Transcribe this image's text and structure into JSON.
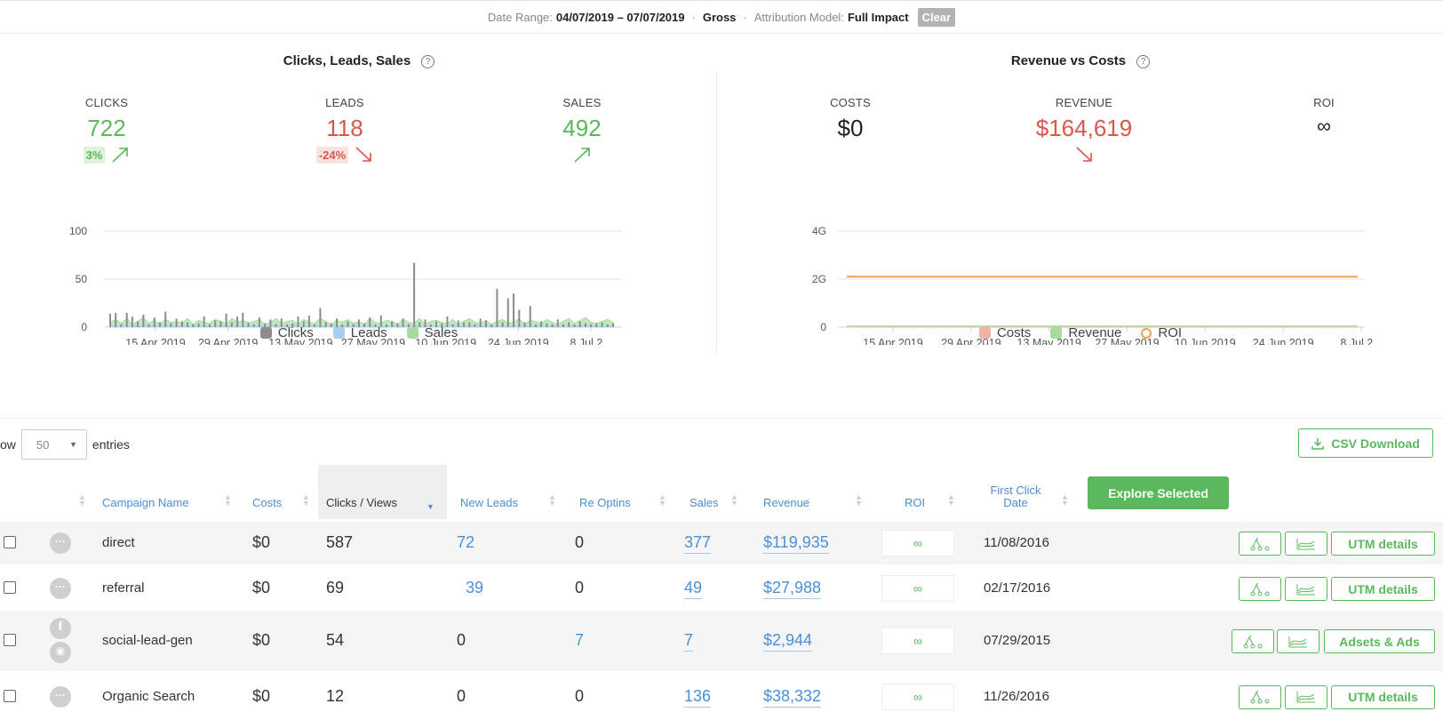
{
  "filter_bar": {
    "date_range_label": "Date Range:",
    "date_range_value": "04/07/2019 – 07/07/2019",
    "gross_label": "Gross",
    "attribution_label": "Attribution Model:",
    "attribution_value": "Full Impact",
    "clear_label": "Clear",
    "separator": "·"
  },
  "left_panel": {
    "title": "Clicks, Leads, Sales",
    "help_icon": "?",
    "kpis": [
      {
        "label": "CLICKS",
        "value": "722",
        "change": "3%",
        "trend": "up"
      },
      {
        "label": "LEADS",
        "value": "118",
        "change": "-24%",
        "trend": "down"
      },
      {
        "label": "SALES",
        "value": "492",
        "change": "",
        "trend": "up"
      }
    ]
  },
  "right_panel": {
    "title": "Revenue vs Costs",
    "help_icon": "?",
    "kpis": [
      {
        "label": "COSTS",
        "value": "$0"
      },
      {
        "label": "REVENUE",
        "value": "$164,619",
        "trend": "down"
      },
      {
        "label": "ROI",
        "value": "∞"
      }
    ]
  },
  "chart_data": [
    {
      "type": "bar",
      "title": "Clicks, Leads, Sales",
      "xlabel": "",
      "ylabel": "",
      "ylim": [
        0,
        100
      ],
      "yticks": [
        "100",
        "50",
        "0"
      ],
      "xticks": [
        "15 Apr 2019",
        "29 Apr 2019",
        "13 May 2019",
        "27 May 2019",
        "10 Jun 2019",
        "24 Jun 2019",
        "8 Jul 2..."
      ],
      "x_start": "2019-04-07",
      "x_end": "2019-07-07",
      "grid": true,
      "legend_position": "bottom",
      "series": [
        {
          "name": "Clicks",
          "color": "#8c8c8c",
          "values": [
            14,
            15,
            3,
            15,
            11,
            6,
            13,
            3,
            10,
            5,
            16,
            4,
            9,
            6,
            5,
            3,
            4,
            11,
            3,
            7,
            6,
            14,
            5,
            11,
            15,
            5,
            3,
            10,
            4,
            8,
            3,
            9,
            3,
            4,
            11,
            6,
            12,
            3,
            20,
            5,
            4,
            9,
            3,
            6,
            3,
            8,
            4,
            10,
            3,
            12,
            3,
            6,
            4,
            9,
            3,
            67,
            5,
            8,
            3,
            6,
            4,
            11,
            3,
            7,
            5,
            5,
            3,
            9,
            7,
            3,
            40,
            5,
            30,
            35,
            18,
            5,
            22,
            3,
            6,
            4,
            3,
            8,
            3,
            5,
            3,
            6,
            4,
            3,
            4,
            5,
            3,
            4
          ]
        },
        {
          "name": "Leads",
          "color": "#a8cdf2",
          "values": [
            2,
            1,
            3,
            1,
            2,
            1,
            1,
            2,
            1,
            1,
            2,
            1,
            1,
            2,
            1,
            1,
            2,
            1,
            1,
            1,
            2,
            1,
            1,
            2,
            1,
            1,
            2,
            1,
            1,
            1,
            2,
            1,
            1,
            1,
            2,
            1,
            1,
            2,
            1,
            1,
            2,
            1,
            1,
            1,
            2,
            1,
            1,
            2,
            1,
            1,
            1,
            2,
            1,
            1,
            2,
            1,
            1,
            1,
            2,
            1,
            1,
            1,
            2,
            1,
            1,
            1,
            2,
            1,
            1,
            1,
            2,
            1,
            1,
            1,
            2,
            1,
            1,
            1,
            2,
            1,
            1,
            1,
            2,
            1,
            1,
            1,
            2,
            1,
            1,
            1,
            1,
            1
          ]
        },
        {
          "name": "Sales",
          "color": "#a8dba0",
          "values": [
            5,
            8,
            4,
            9,
            3,
            6,
            10,
            4,
            7,
            3,
            8,
            5,
            6,
            4,
            9,
            3,
            7,
            5,
            4,
            8,
            6,
            3,
            9,
            5,
            7,
            4,
            6,
            8,
            3,
            5,
            9,
            4,
            6,
            7,
            3,
            8,
            5,
            4,
            9,
            6,
            3,
            7,
            5,
            8,
            4,
            6,
            3,
            9,
            5,
            4,
            7,
            6,
            3,
            8,
            5,
            4,
            9,
            3,
            6,
            7,
            5,
            4,
            8,
            3,
            6,
            9,
            5,
            4,
            7,
            3,
            6,
            8,
            4,
            5,
            9,
            3,
            7,
            6,
            4,
            8,
            5,
            3,
            6,
            9,
            4,
            7,
            10,
            5,
            4,
            6,
            8,
            5
          ]
        }
      ]
    },
    {
      "type": "line",
      "title": "Revenue vs Costs",
      "xlabel": "",
      "ylabel": "",
      "ylim": [
        0,
        4000000000
      ],
      "yticks": [
        "4G",
        "2G",
        "0"
      ],
      "xticks": [
        "15 Apr 2019",
        "29 Apr 2019",
        "13 May 2019",
        "27 May 2019",
        "10 Jun 2019",
        "24 Jun 2019",
        "8 Jul 2..."
      ],
      "x_start": "2019-04-07",
      "x_end": "2019-07-07",
      "grid": true,
      "legend_position": "bottom",
      "series": [
        {
          "name": "Costs",
          "color": "#f0b3a8",
          "values": [
            0,
            0
          ]
        },
        {
          "name": "Revenue",
          "color": "#a8dba0",
          "values": [
            0,
            0
          ]
        },
        {
          "name": "ROI",
          "color": "#f0a050",
          "values": [
            2100000000,
            2100000000
          ]
        }
      ]
    }
  ],
  "table_controls": {
    "show_label": "ow",
    "entries_value": "50",
    "entries_label": "entries",
    "csv_label": "CSV Download"
  },
  "table": {
    "headers": [
      "Campaign Name",
      "Costs",
      "Clicks / Views",
      "New Leads",
      "Re Optins",
      "Sales",
      "Revenue",
      "ROI",
      "First Click Date"
    ],
    "explore_label": "Explore Selected",
    "rows": [
      {
        "name": "direct",
        "costs": "$0",
        "clicks": "587",
        "new_leads": "72",
        "re_optins": "0",
        "sales": "377",
        "revenue": "$119,935",
        "roi": "∞",
        "first_click": "11/08/2016",
        "action": "UTM details",
        "source_icon": "more-icon"
      },
      {
        "name": "referral",
        "costs": "$0",
        "clicks": "69",
        "new_leads": "39",
        "re_optins": "0",
        "sales": "49",
        "revenue": "$27,988",
        "roi": "∞",
        "first_click": "02/17/2016",
        "action": "UTM details",
        "source_icon": "more-icon"
      },
      {
        "name": "social-lead-gen",
        "costs": "$0",
        "clicks": "54",
        "new_leads": "0",
        "re_optins": "7",
        "sales": "7",
        "revenue": "$2,944",
        "roi": "∞",
        "first_click": "07/29/2015",
        "action": "Adsets & Ads",
        "source_icon": "facebook-icon"
      },
      {
        "name": "Organic Search",
        "costs": "$0",
        "clicks": "12",
        "new_leads": "0",
        "re_optins": "0",
        "sales": "136",
        "revenue": "$38,332",
        "roi": "∞",
        "first_click": "11/26/2016",
        "action": "UTM details",
        "source_icon": "more-icon"
      }
    ]
  },
  "colors": {
    "accent_green": "#5cb85c",
    "accent_red": "#d9574a",
    "link_blue": "#4a90d9"
  }
}
